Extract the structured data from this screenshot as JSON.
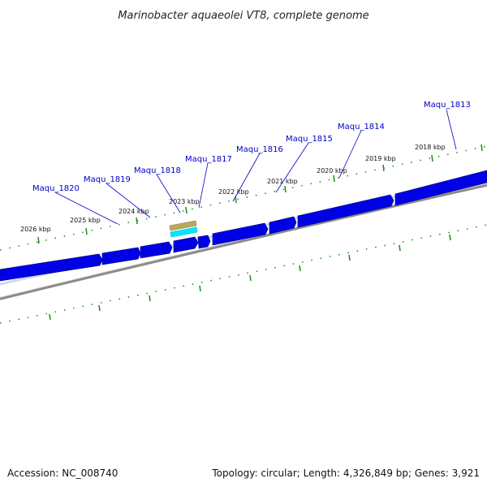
{
  "title": "Marinobacter aquaeolei VT8, complete genome",
  "footer": {
    "accession": "Accession: NC_008740",
    "summary": "Topology: circular; Length: 4,326,849 bp; Genes: 3,921"
  },
  "scale": {
    "unit": "kbp",
    "labels": [
      "2018 kbp",
      "2019 kbp",
      "2020 kbp",
      "2021 kbp",
      "2022 kbp",
      "2023 kbp",
      "2024 kbp",
      "2025 kbp",
      "2026 kbp"
    ]
  },
  "genes": [
    "Maqu_1813",
    "Maqu_1814",
    "Maqu_1815",
    "Maqu_1816",
    "Maqu_1817",
    "Maqu_1818",
    "Maqu_1819",
    "Maqu_1820"
  ],
  "colors": {
    "gene_fill": "#0000e6",
    "gene_edge": "#00008a",
    "backbone": "#7a7a7a",
    "ticks": "#1a8a1a",
    "label_text": "#0000c8",
    "feature_tan": "#b8a860",
    "feature_cyan": "#00e8ff"
  }
}
